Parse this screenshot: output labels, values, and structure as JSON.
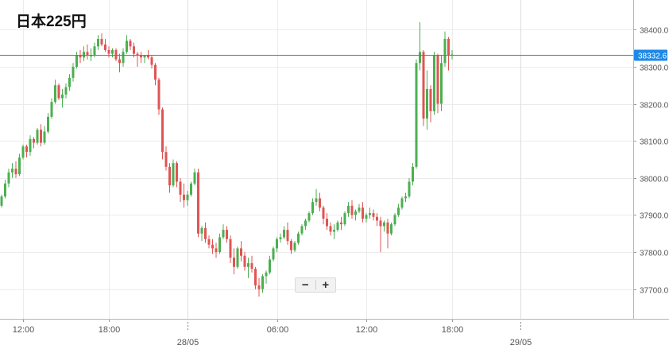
{
  "title": "日本225円",
  "zoom": {
    "minus": "−",
    "plus": "+"
  },
  "colors": {
    "up": "#4caf50",
    "down": "#e05454",
    "price_line": "#1e88e5",
    "grid": "#ececec"
  },
  "chart_data": {
    "type": "candlestick",
    "ylim": [
      37620,
      38480
    ],
    "y_ticks": [
      {
        "value": 37700,
        "label": "37700.0"
      },
      {
        "value": 37800,
        "label": "37800.0"
      },
      {
        "value": 37900,
        "label": "37900.0"
      },
      {
        "value": 38000,
        "label": "38000.0"
      },
      {
        "value": 38100,
        "label": "38100.0"
      },
      {
        "value": 38200,
        "label": "38200.0"
      },
      {
        "value": 38300,
        "label": "38300.0"
      },
      {
        "value": 38400,
        "label": "38400.0"
      }
    ],
    "x_ticks": [
      {
        "index": 6,
        "label": "12:00"
      },
      {
        "index": 30,
        "label": "18:00"
      },
      {
        "index": 77,
        "label": "06:00"
      },
      {
        "index": 102,
        "label": "12:00"
      },
      {
        "index": 126,
        "label": "18:00"
      }
    ],
    "date_ticks": [
      {
        "index": 52,
        "label": "28/05"
      },
      {
        "index": 145,
        "label": "29/05"
      }
    ],
    "last_price": {
      "value": 38332.6,
      "label": "38332.6"
    },
    "candles": [
      [
        37925,
        37955,
        37920,
        37950
      ],
      [
        37950,
        37995,
        37945,
        37985
      ],
      [
        37985,
        38025,
        37975,
        38015
      ],
      [
        38015,
        38040,
        38000,
        38025
      ],
      [
        38025,
        38045,
        38000,
        38010
      ],
      [
        38010,
        38065,
        38005,
        38055
      ],
      [
        38055,
        38090,
        38050,
        38085
      ],
      [
        38085,
        38090,
        38055,
        38070
      ],
      [
        38070,
        38115,
        38060,
        38105
      ],
      [
        38105,
        38110,
        38080,
        38095
      ],
      [
        38095,
        38135,
        38090,
        38130
      ],
      [
        38130,
        38145,
        38085,
        38095
      ],
      [
        38095,
        38140,
        38090,
        38125
      ],
      [
        38125,
        38175,
        38120,
        38165
      ],
      [
        38165,
        38215,
        38160,
        38205
      ],
      [
        38205,
        38265,
        38200,
        38250
      ],
      [
        38250,
        38255,
        38210,
        38215
      ],
      [
        38215,
        38240,
        38190,
        38225
      ],
      [
        38225,
        38255,
        38215,
        38245
      ],
      [
        38245,
        38280,
        38235,
        38270
      ],
      [
        38270,
        38310,
        38260,
        38300
      ],
      [
        38300,
        38340,
        38295,
        38330
      ],
      [
        38330,
        38345,
        38310,
        38325
      ],
      [
        38325,
        38355,
        38315,
        38340
      ],
      [
        38340,
        38360,
        38320,
        38330
      ],
      [
        38330,
        38350,
        38315,
        38330
      ],
      [
        38330,
        38365,
        38325,
        38355
      ],
      [
        38355,
        38385,
        38345,
        38375
      ],
      [
        38375,
        38390,
        38355,
        38360
      ],
      [
        38360,
        38375,
        38340,
        38345
      ],
      [
        38345,
        38355,
        38325,
        38335
      ],
      [
        38335,
        38350,
        38325,
        38345
      ],
      [
        38345,
        38350,
        38315,
        38320
      ],
      [
        38320,
        38335,
        38285,
        38310
      ],
      [
        38310,
        38350,
        38300,
        38340
      ],
      [
        38340,
        38385,
        38335,
        38370
      ],
      [
        38370,
        38375,
        38345,
        38355
      ],
      [
        38355,
        38365,
        38325,
        38335
      ],
      [
        38335,
        38340,
        38300,
        38330
      ],
      [
        38330,
        38340,
        38310,
        38325
      ],
      [
        38325,
        38330,
        38310,
        38330
      ],
      [
        38330,
        38345,
        38320,
        38325
      ],
      [
        38325,
        38330,
        38295,
        38305
      ],
      [
        38305,
        38310,
        38250,
        38265
      ],
      [
        38265,
        38270,
        38170,
        38185
      ],
      [
        38185,
        38190,
        38050,
        38070
      ],
      [
        38070,
        38085,
        38020,
        38030
      ],
      [
        38030,
        38040,
        37960,
        37980
      ],
      [
        37980,
        38050,
        37975,
        38040
      ],
      [
        38040,
        38045,
        37975,
        37990
      ],
      [
        37990,
        38000,
        37935,
        37955
      ],
      [
        37955,
        37985,
        37920,
        37940
      ],
      [
        37940,
        37965,
        37925,
        37955
      ],
      [
        37955,
        37990,
        37950,
        37985
      ],
      [
        37985,
        38025,
        37980,
        38015
      ],
      [
        38015,
        38025,
        37840,
        37850
      ],
      [
        37850,
        37870,
        37830,
        37865
      ],
      [
        37865,
        37880,
        37825,
        37835
      ],
      [
        37835,
        37845,
        37810,
        37820
      ],
      [
        37820,
        37835,
        37795,
        37810
      ],
      [
        37810,
        37825,
        37785,
        37800
      ],
      [
        37800,
        37850,
        37795,
        37840
      ],
      [
        37840,
        37875,
        37835,
        37860
      ],
      [
        37860,
        37870,
        37825,
        37835
      ],
      [
        37835,
        37845,
        37770,
        37785
      ],
      [
        37785,
        37810,
        37740,
        37760
      ],
      [
        37760,
        37815,
        37755,
        37810
      ],
      [
        37810,
        37830,
        37775,
        37790
      ],
      [
        37790,
        37800,
        37750,
        37760
      ],
      [
        37760,
        37785,
        37730,
        37770
      ],
      [
        37770,
        37790,
        37745,
        37755
      ],
      [
        37755,
        37760,
        37700,
        37710
      ],
      [
        37710,
        37730,
        37680,
        37700
      ],
      [
        37700,
        37740,
        37690,
        37735
      ],
      [
        37735,
        37750,
        37715,
        37745
      ],
      [
        37745,
        37790,
        37740,
        37780
      ],
      [
        37780,
        37815,
        37775,
        37810
      ],
      [
        37810,
        37840,
        37800,
        37835
      ],
      [
        37835,
        37850,
        37825,
        37840
      ],
      [
        37840,
        37870,
        37835,
        37860
      ],
      [
        37860,
        37880,
        37820,
        37830
      ],
      [
        37830,
        37835,
        37795,
        37805
      ],
      [
        37805,
        37830,
        37800,
        37825
      ],
      [
        37825,
        37855,
        37820,
        37850
      ],
      [
        37850,
        37875,
        37845,
        37870
      ],
      [
        37870,
        37890,
        37860,
        37885
      ],
      [
        37885,
        37910,
        37880,
        37905
      ],
      [
        37905,
        37945,
        37900,
        37935
      ],
      [
        37935,
        37970,
        37925,
        37945
      ],
      [
        37945,
        37960,
        37910,
        37920
      ],
      [
        37920,
        37925,
        37875,
        37890
      ],
      [
        37890,
        37905,
        37860,
        37870
      ],
      [
        37870,
        37880,
        37845,
        37855
      ],
      [
        37855,
        37875,
        37835,
        37860
      ],
      [
        37860,
        37885,
        37855,
        37880
      ],
      [
        37880,
        37895,
        37860,
        37875
      ],
      [
        37875,
        37910,
        37870,
        37905
      ],
      [
        37905,
        37935,
        37895,
        37925
      ],
      [
        37925,
        37940,
        37890,
        37900
      ],
      [
        37900,
        37915,
        37885,
        37910
      ],
      [
        37910,
        37930,
        37905,
        37920
      ],
      [
        37920,
        37935,
        37880,
        37890
      ],
      [
        37890,
        37905,
        37880,
        37900
      ],
      [
        37900,
        37920,
        37890,
        37905
      ],
      [
        37905,
        37915,
        37885,
        37895
      ],
      [
        37895,
        37905,
        37870,
        37885
      ],
      [
        37885,
        37895,
        37800,
        37870
      ],
      [
        37870,
        37885,
        37855,
        37880
      ],
      [
        37880,
        37890,
        37810,
        37850
      ],
      [
        37850,
        37880,
        37845,
        37875
      ],
      [
        37875,
        37905,
        37870,
        37900
      ],
      [
        37900,
        37930,
        37895,
        37920
      ],
      [
        37920,
        37950,
        37915,
        37945
      ],
      [
        37945,
        37960,
        37935,
        37950
      ],
      [
        37950,
        38000,
        37945,
        37990
      ],
      [
        37990,
        38040,
        37980,
        38030
      ],
      [
        38030,
        38320,
        38025,
        38310
      ],
      [
        38310,
        38420,
        38290,
        38340
      ],
      [
        38340,
        38345,
        38140,
        38160
      ],
      [
        38160,
        38290,
        38130,
        38240
      ],
      [
        38240,
        38250,
        38150,
        38180
      ],
      [
        38180,
        38340,
        38170,
        38330
      ],
      [
        38330,
        38335,
        38175,
        38200
      ],
      [
        38200,
        38330,
        38180,
        38310
      ],
      [
        38310,
        38395,
        38300,
        38375
      ],
      [
        38375,
        38380,
        38290,
        38330
      ],
      [
        38330,
        38345,
        38320,
        38333
      ]
    ]
  }
}
